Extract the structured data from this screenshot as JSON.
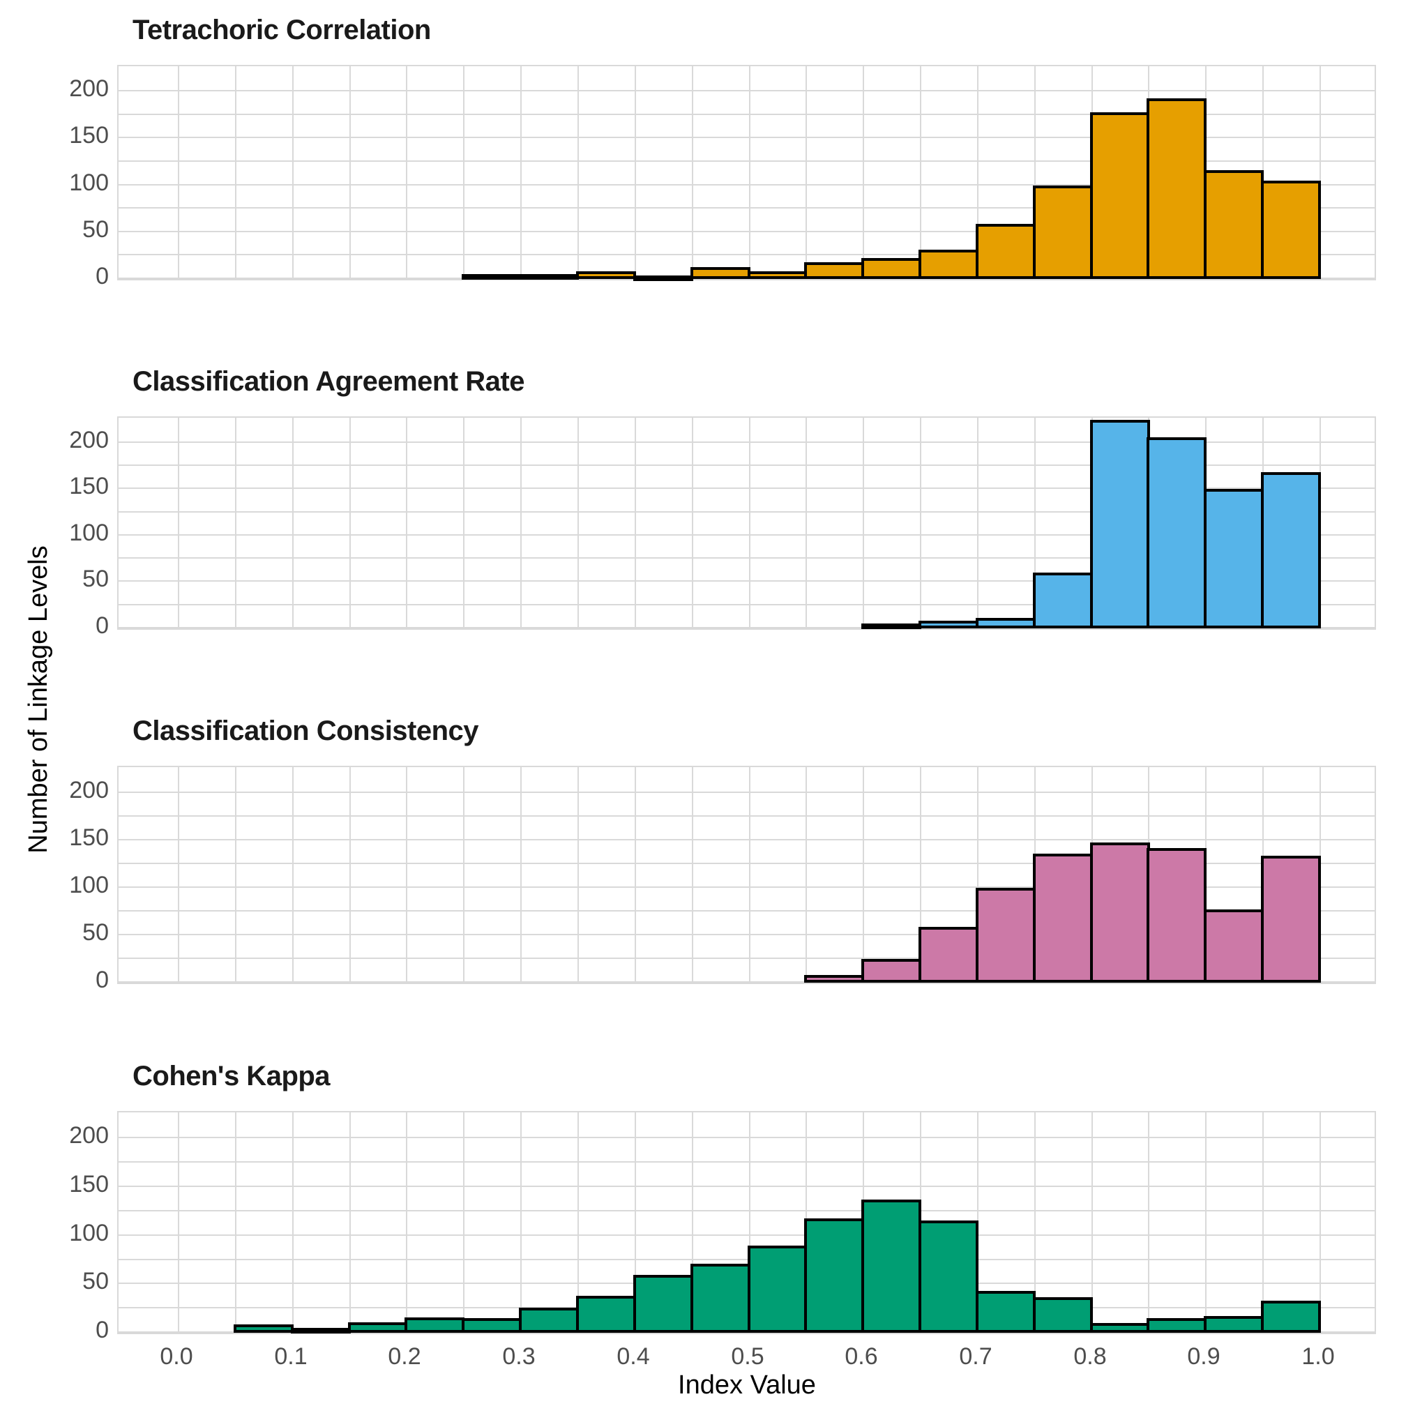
{
  "axes": {
    "x_label": "Index Value",
    "y_label": "Number of Linkage Levels",
    "x_tick_labels": [
      "0.0",
      "0.1",
      "0.2",
      "0.3",
      "0.4",
      "0.5",
      "0.6",
      "0.7",
      "0.8",
      "0.9",
      "1.0"
    ],
    "y_tick_labels": [
      "0",
      "50",
      "100",
      "150",
      "200"
    ],
    "y_tick_values": [
      0,
      50,
      100,
      150,
      200
    ],
    "x_tick_values": [
      0,
      0.1,
      0.2,
      0.3,
      0.4,
      0.5,
      0.6,
      0.7,
      0.8,
      0.9,
      1.0
    ]
  },
  "style": {
    "background": "#ffffff",
    "gridline_color": "#d9d9d9",
    "bar_stroke_color": "#000000",
    "tick_text_color": "#4d4d4d",
    "title_text_color": "#1a1a1a"
  },
  "chart_data": [
    {
      "type": "bar",
      "subtype": "histogram",
      "title": "Tetrachoric Correlation",
      "color": "#E69F00",
      "bin_width": 0.05,
      "bin_starts": [
        0.25,
        0.3,
        0.35,
        0.4,
        0.45,
        0.5,
        0.55,
        0.6,
        0.65,
        0.7,
        0.75,
        0.8,
        0.85,
        0.9,
        0.95
      ],
      "counts": [
        2,
        2,
        5,
        1,
        10,
        5,
        15,
        19,
        28,
        56,
        97,
        175,
        190,
        113,
        102
      ],
      "xlabel": "Index Value",
      "ylabel": "Number of Linkage Levels",
      "xlim": [
        -0.052,
        1.052
      ],
      "ylim": [
        0,
        225
      ],
      "grid": true,
      "legend": "none"
    },
    {
      "type": "bar",
      "subtype": "histogram",
      "title": "Classification Agreement Rate",
      "color": "#56B4E9",
      "bin_width": 0.05,
      "bin_starts": [
        0.6,
        0.65,
        0.7,
        0.75,
        0.8,
        0.85,
        0.9,
        0.95
      ],
      "counts": [
        2,
        5,
        8,
        57,
        222,
        203,
        147,
        165
      ],
      "xlabel": "Index Value",
      "ylabel": "Number of Linkage Levels",
      "xlim": [
        -0.052,
        1.052
      ],
      "ylim": [
        0,
        225
      ],
      "grid": true,
      "legend": "none"
    },
    {
      "type": "bar",
      "subtype": "histogram",
      "title": "Classification Consistency",
      "color": "#CC79A7",
      "bin_width": 0.05,
      "bin_starts": [
        0.55,
        0.6,
        0.65,
        0.7,
        0.75,
        0.8,
        0.85,
        0.9,
        0.95
      ],
      "counts": [
        5,
        22,
        56,
        97,
        133,
        145,
        139,
        74,
        131
      ],
      "xlabel": "Index Value",
      "ylabel": "Number of Linkage Levels",
      "xlim": [
        -0.052,
        1.052
      ],
      "ylim": [
        0,
        225
      ],
      "grid": true,
      "legend": "none"
    },
    {
      "type": "bar",
      "subtype": "histogram",
      "title": "Cohen's Kappa",
      "color": "#009E73",
      "bin_width": 0.05,
      "bin_starts": [
        0.05,
        0.1,
        0.15,
        0.2,
        0.25,
        0.3,
        0.35,
        0.4,
        0.45,
        0.5,
        0.55,
        0.6,
        0.65,
        0.7,
        0.75,
        0.8,
        0.85,
        0.9,
        0.95
      ],
      "counts": [
        6,
        2,
        8,
        13,
        12,
        23,
        35,
        57,
        68,
        87,
        115,
        134,
        113,
        40,
        34,
        7,
        12,
        14,
        30
      ],
      "xlabel": "Index Value",
      "ylabel": "Number of Linkage Levels",
      "xlim": [
        -0.052,
        1.052
      ],
      "ylim": [
        0,
        225
      ],
      "grid": true,
      "legend": "none"
    }
  ]
}
